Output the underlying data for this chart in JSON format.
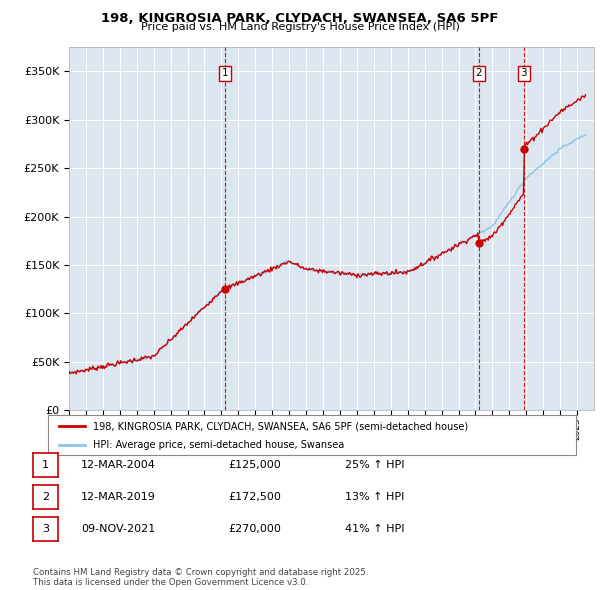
{
  "title_line1": "198, KINGROSIA PARK, CLYDACH, SWANSEA, SA6 5PF",
  "title_line2": "Price paid vs. HM Land Registry's House Price Index (HPI)",
  "plot_bg_color": "#dce6f0",
  "grid_color": "#ffffff",
  "red_line_color": "#cc0000",
  "blue_line_color": "#8ec4e8",
  "transactions": [
    {
      "label": "1",
      "date_num": 2004.19,
      "price": 125000,
      "pct": "25%",
      "date_str": "12-MAR-2004"
    },
    {
      "label": "2",
      "date_num": 2019.19,
      "price": 172500,
      "pct": "13%",
      "date_str": "12-MAR-2019"
    },
    {
      "label": "3",
      "date_num": 2021.86,
      "price": 270000,
      "pct": "41%",
      "date_str": "09-NOV-2021"
    }
  ],
  "xlim": [
    1995.0,
    2026.0
  ],
  "ylim": [
    0,
    375000
  ],
  "yticks": [
    0,
    50000,
    100000,
    150000,
    200000,
    250000,
    300000,
    350000
  ],
  "ytick_labels": [
    "£0",
    "£50K",
    "£100K",
    "£150K",
    "£200K",
    "£250K",
    "£300K",
    "£350K"
  ],
  "legend_label_red": "198, KINGROSIA PARK, CLYDACH, SWANSEA, SA6 5PF (semi-detached house)",
  "legend_label_blue": "HPI: Average price, semi-detached house, Swansea",
  "footer_text": "Contains HM Land Registry data © Crown copyright and database right 2025.\nThis data is licensed under the Open Government Licence v3.0."
}
